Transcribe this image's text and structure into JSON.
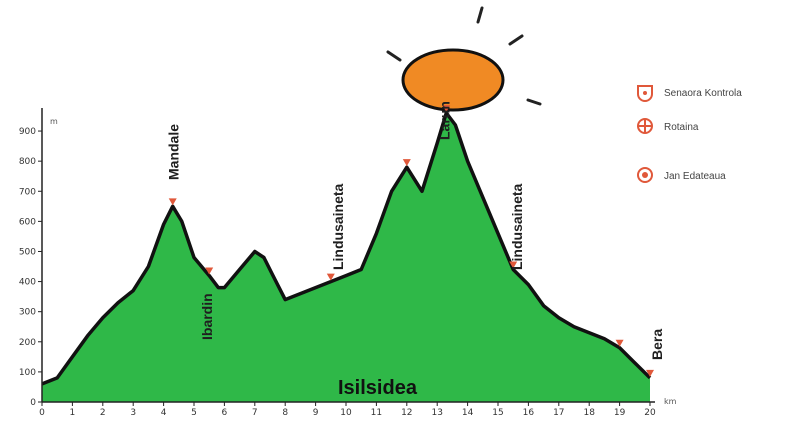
{
  "chart_data": {
    "type": "area",
    "x_unit": "km",
    "y_unit": "m",
    "xlim": [
      0,
      20
    ],
    "ylim": [
      0,
      950
    ],
    "x_ticks": [
      0,
      1,
      2,
      3,
      4,
      5,
      6,
      7,
      8,
      9,
      10,
      11,
      12,
      13,
      14,
      15,
      16,
      17,
      18,
      19,
      20
    ],
    "x_tick_labels": [
      "0",
      "1",
      "2",
      "3",
      "4",
      "5",
      "6",
      "7",
      "8",
      "9",
      "10",
      "11",
      "12",
      "13",
      "14",
      "15",
      "16",
      "17",
      "18",
      "19",
      "20"
    ],
    "y_ticks": [
      0,
      100,
      200,
      300,
      400,
      500,
      600,
      700,
      800,
      900
    ],
    "y_tick_labels": [
      "0",
      "100",
      "200",
      "300",
      "400",
      "500",
      "600",
      "700",
      "800",
      "900"
    ],
    "series": [
      {
        "values_x": [
          0,
          0.5,
          1,
          1.5,
          2,
          2.5,
          3,
          3.5,
          4,
          4.3,
          4.6,
          5,
          5.5,
          5.8,
          6,
          6.5,
          7,
          7.3,
          7.6,
          8,
          8.5,
          9,
          9.5,
          10,
          10.5,
          11,
          11.5,
          12,
          12.5,
          13,
          13.3,
          13.6,
          14,
          14.5,
          15,
          15.5,
          16,
          16.5,
          17,
          17.5,
          18,
          18.5,
          19,
          19.5,
          20
        ],
        "values_y": [
          60,
          80,
          150,
          220,
          280,
          330,
          370,
          450,
          590,
          650,
          600,
          480,
          420,
          380,
          380,
          440,
          500,
          480,
          420,
          340,
          360,
          380,
          400,
          420,
          440,
          560,
          700,
          780,
          700,
          860,
          960,
          920,
          800,
          680,
          560,
          440,
          390,
          320,
          280,
          250,
          230,
          210,
          180,
          130,
          80
        ]
      }
    ],
    "peak_labels": [
      {
        "x": 4.3,
        "label": "Mandale"
      },
      {
        "x": 5.4,
        "label": "Ibardin"
      },
      {
        "x": 9.7,
        "label": "Lindusaineta"
      },
      {
        "x": 13.2,
        "label": "Larun"
      },
      {
        "x": 15.6,
        "label": "Lindusaineta"
      },
      {
        "x": 20.2,
        "label": "Bera"
      }
    ],
    "route_label": "Isilsidea",
    "legend": [
      {
        "icon": "control-point-icon",
        "label": "Senaora Kontrola"
      },
      {
        "icon": "supply-point-icon",
        "label": "Rotaina"
      },
      {
        "icon": "food-point-icon",
        "label": "Jan Edateaua"
      }
    ],
    "colors": {
      "fill": "#2fb848",
      "outline": "#111111",
      "accent": "#e0583a",
      "sun": "#f08a24"
    }
  }
}
